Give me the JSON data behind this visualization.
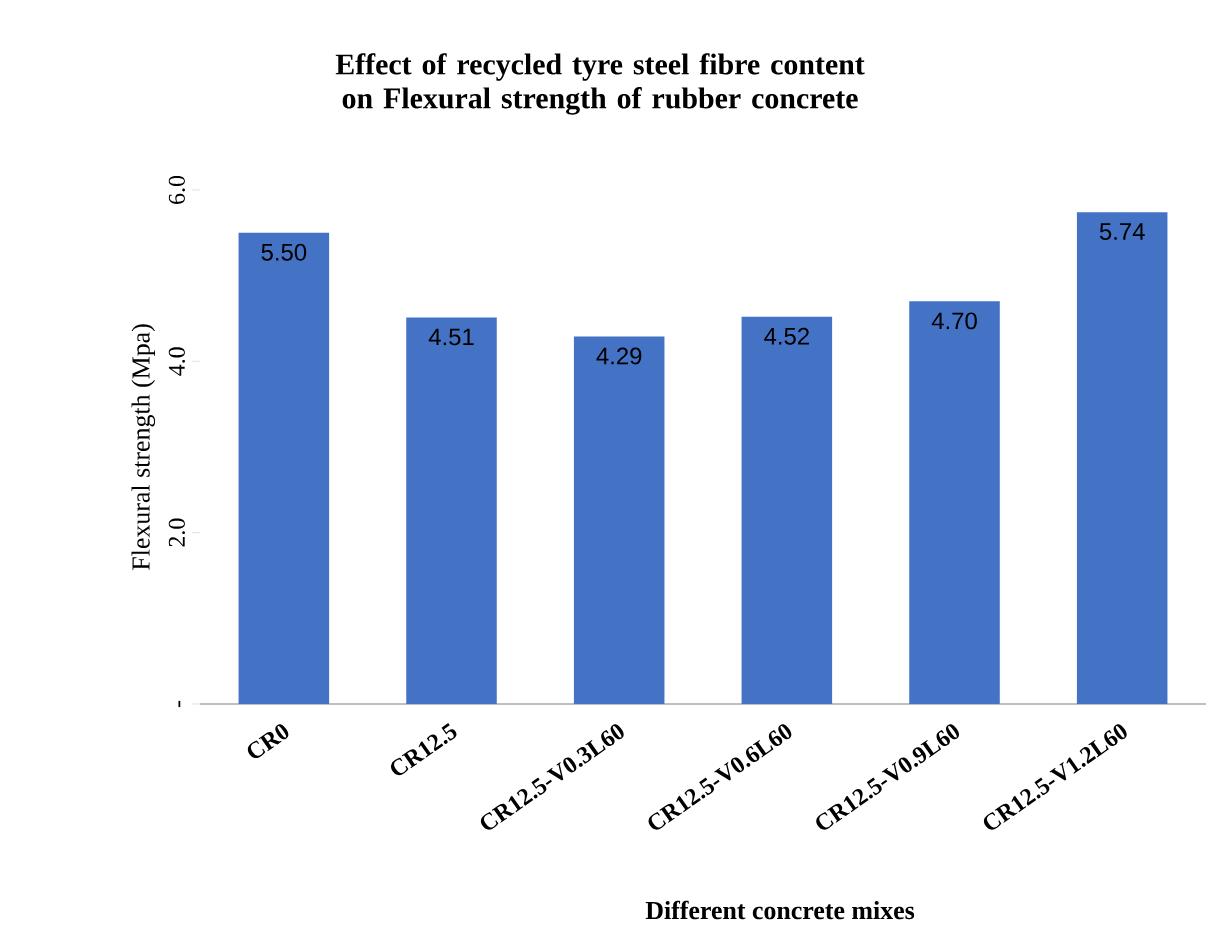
{
  "chart_data": {
    "type": "bar",
    "title": "Effect of recycled tyre steel fibre content on Flexural strength of rubber concrete",
    "xlabel": "Different concrete mixes",
    "ylabel": "Flexural strength (Mpa)",
    "categories": [
      "CR0",
      "CR12.5",
      "CR12.5-V0.3L60",
      "CR12.5-V0.6L60",
      "CR12.5-V0.9L60",
      "CR12.5-V1.2L60"
    ],
    "values": [
      5.5,
      4.51,
      4.29,
      4.52,
      4.7,
      5.74
    ],
    "value_labels": [
      "5.50",
      "4.51",
      "4.29",
      "4.52",
      "4.70",
      "5.74"
    ],
    "color": "#4472c4",
    "ylim": [
      0,
      6
    ],
    "yticks": [
      {
        "value": 0,
        "label": "-"
      },
      {
        "value": 2,
        "label": "2.0"
      },
      {
        "value": 4,
        "label": "4.0"
      },
      {
        "value": 6,
        "label": "6.0"
      }
    ]
  }
}
